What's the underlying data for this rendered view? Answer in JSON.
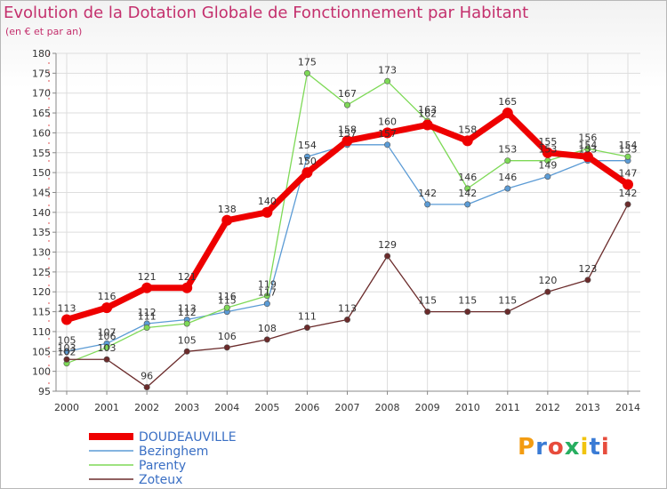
{
  "chart_data": {
    "type": "line",
    "title": "Evolution de la Dotation Globale de Fonctionnement par Habitant",
    "subtitle": "(en € et par an)",
    "xlabel": "",
    "ylabel": "",
    "ylim": [
      95,
      180
    ],
    "yticks": [
      "95",
      "100",
      "105",
      "110",
      "115",
      "120",
      "125",
      "130",
      "135",
      "140",
      "145",
      "150",
      "155",
      "160",
      "165",
      "170",
      "175",
      "180"
    ],
    "categories": [
      "2000",
      "2001",
      "2002",
      "2003",
      "2004",
      "2005",
      "2006",
      "2007",
      "2008",
      "2009",
      "2010",
      "2011",
      "2012",
      "2013",
      "2014"
    ],
    "series": [
      {
        "name": "DOUDEAUVILLE",
        "color": "#ee0000",
        "values": [
          113,
          116,
          121,
          121,
          138,
          140,
          150,
          158,
          160,
          162,
          158,
          165,
          155,
          154,
          147
        ]
      },
      {
        "name": "Bezinghem",
        "color": "#5b9bd5",
        "values": [
          105,
          107,
          112,
          113,
          115,
          117,
          154,
          157,
          157,
          142,
          142,
          146,
          149,
          153,
          153
        ]
      },
      {
        "name": "Parenty",
        "color": "#7ed957",
        "values": [
          102,
          106,
          111,
          112,
          116,
          119,
          175,
          167,
          173,
          163,
          146,
          153,
          153,
          156,
          154
        ]
      },
      {
        "name": "Zoteux",
        "color": "#6b2b2b",
        "values": [
          103,
          103,
          96,
          105,
          106,
          108,
          111,
          113,
          129,
          115,
          115,
          115,
          120,
          123,
          142
        ]
      }
    ],
    "grid": true,
    "legend_position": "bottom-left"
  },
  "logo": {
    "text": "Proxiti",
    "p": "P",
    "r": "r",
    "o": "o",
    "x": "x",
    "i1": "i",
    "t": "t",
    "i2": "i"
  }
}
